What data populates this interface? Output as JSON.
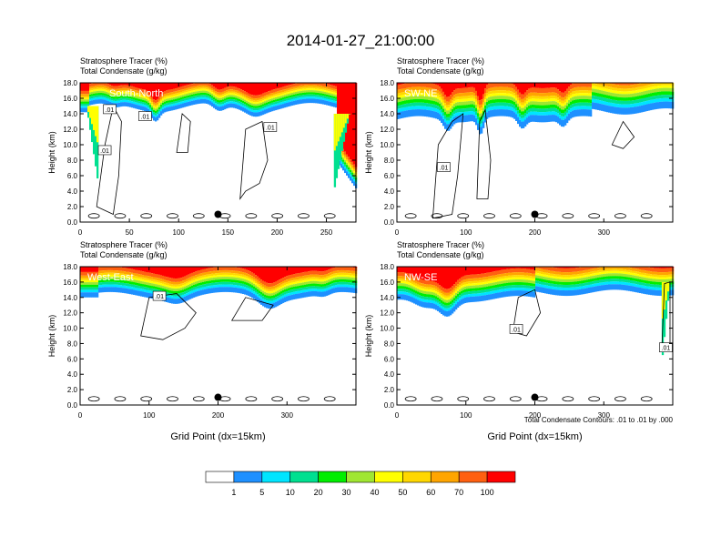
{
  "title": "2014-01-27_21:00:00",
  "colorbar": {
    "colors": [
      "#ffffff",
      "#1e90ff",
      "#00e5ff",
      "#00e090",
      "#00ee00",
      "#a0e632",
      "#ffff00",
      "#ffd700",
      "#ffa500",
      "#ff6010",
      "#ff0000"
    ],
    "labels": [
      "1",
      "5",
      "10",
      "20",
      "30",
      "40",
      "50",
      "60",
      "70",
      "100"
    ]
  },
  "contour_note": "Total Condensate Contours: .01 to .01 by .000",
  "marker_color": "#000000",
  "chart_data": [
    {
      "type": "heatmap",
      "name_label": "South-North",
      "line1": "Stratosphere Tracer   (%)",
      "line2": "Total Condensate   (g/kg)",
      "ylabel": "Height (km)",
      "xlabel": "",
      "xlim": [
        0,
        280
      ],
      "ylim": [
        0,
        18
      ],
      "xticks": [
        0,
        50,
        100,
        150,
        200,
        250
      ],
      "yticks": [
        0,
        2,
        4,
        6,
        8,
        10,
        12,
        14,
        16,
        18
      ],
      "ytick_labels": [
        "0.0",
        "2.0",
        "4.0",
        "6.0",
        "8.0",
        "10.0",
        "12.0",
        "14.0",
        "16.0",
        "18.0"
      ],
      "marker": [
        140,
        1.0
      ],
      "contour_labels": [
        {
          "text": ".01",
          "x": 30,
          "y": 14.6
        },
        {
          "text": ".01",
          "x": 66,
          "y": 13.7
        },
        {
          "text": ".01",
          "x": 193,
          "y": 12.3
        },
        {
          "text": ".01",
          "x": 25,
          "y": 9.3
        }
      ]
    },
    {
      "type": "heatmap",
      "name_label": "SW-NE",
      "line1": "Stratosphere Tracer   (%)",
      "line2": "Total Condensate   (g/kg)",
      "ylabel": "Height (km)",
      "xlabel": "",
      "xlim": [
        0,
        400
      ],
      "ylim": [
        0,
        18
      ],
      "xticks": [
        0,
        100,
        200,
        300
      ],
      "yticks": [
        0,
        2,
        4,
        6,
        8,
        10,
        12,
        14,
        16,
        18
      ],
      "ytick_labels": [
        "0.0",
        "2.0",
        "4.0",
        "6.0",
        "8.0",
        "10.0",
        "12.0",
        "14.0",
        "16.0",
        "18.0"
      ],
      "marker": [
        200,
        1.0
      ],
      "contour_labels": [
        {
          "text": ".01",
          "x": 68,
          "y": 7.1
        }
      ]
    },
    {
      "type": "heatmap",
      "name_label": "West-East",
      "line1": "Stratosphere Tracer   (%)",
      "line2": "Total Condensate   (g/kg)",
      "ylabel": "Height (km)",
      "xlabel": "Grid Point (dx=15km)",
      "xlim": [
        0,
        400
      ],
      "ylim": [
        0,
        18
      ],
      "xticks": [
        0,
        100,
        200,
        300
      ],
      "yticks": [
        0,
        2,
        4,
        6,
        8,
        10,
        12,
        14,
        16,
        18
      ],
      "ytick_labels": [
        "0.0",
        "2.0",
        "4.0",
        "6.0",
        "8.0",
        "10.0",
        "12.0",
        "14.0",
        "16.0",
        "18.0"
      ],
      "marker": [
        200,
        1.0
      ],
      "contour_labels": [
        {
          "text": ".01",
          "x": 115,
          "y": 14.2
        }
      ]
    },
    {
      "type": "heatmap",
      "name_label": "NW-SE",
      "line1": "Stratosphere Tracer   (%)",
      "line2": "Total Condensate   (g/kg)",
      "ylabel": "Height (km)",
      "xlabel": "Grid Point (dx=15km)",
      "xlim": [
        0,
        400
      ],
      "ylim": [
        0,
        18
      ],
      "xticks": [
        0,
        100,
        200,
        300
      ],
      "yticks": [
        0,
        2,
        4,
        6,
        8,
        10,
        12,
        14,
        16,
        18
      ],
      "ytick_labels": [
        "0.0",
        "2.0",
        "4.0",
        "6.0",
        "8.0",
        "10.0",
        "12.0",
        "14.0",
        "16.0",
        "18.0"
      ],
      "marker": [
        200,
        1.0
      ],
      "contour_labels": [
        {
          "text": ".01",
          "x": 173,
          "y": 9.9
        },
        {
          "text": ".01",
          "x": 390,
          "y": 7.5
        }
      ]
    }
  ]
}
